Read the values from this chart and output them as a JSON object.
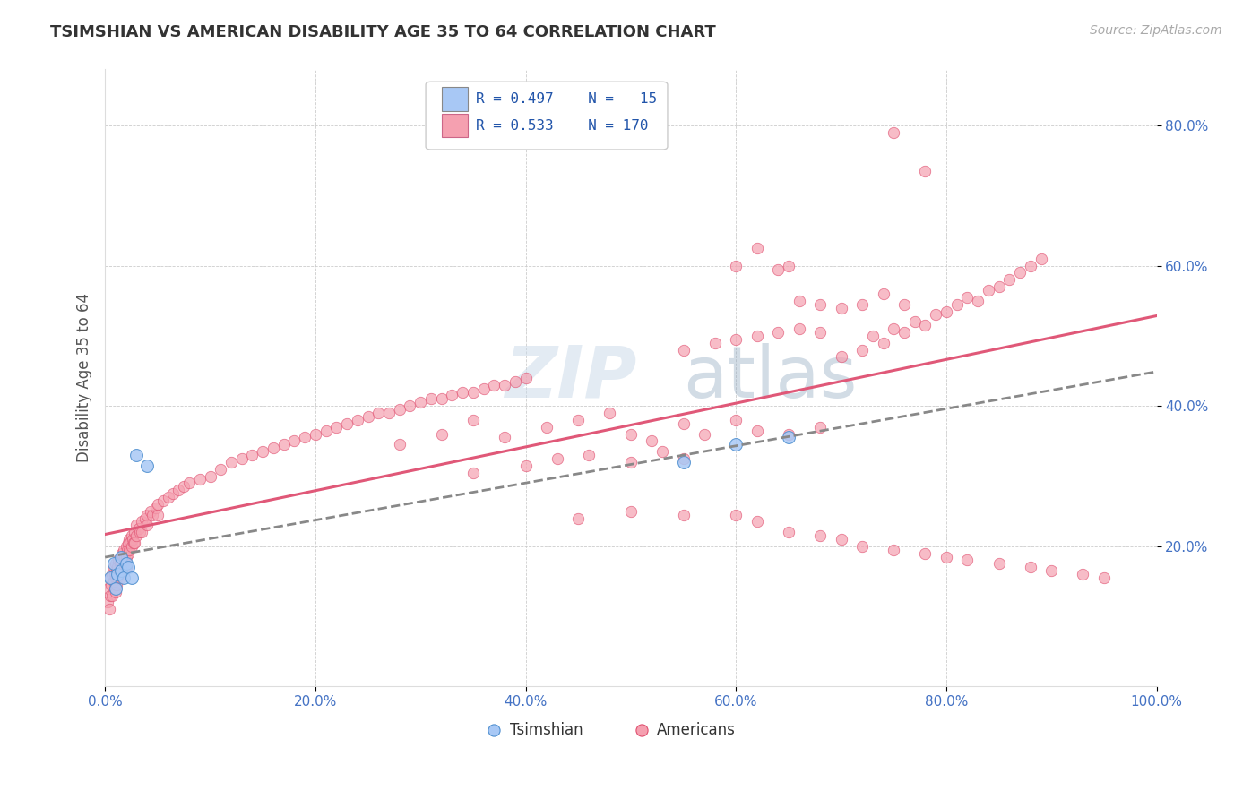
{
  "title": "TSIMSHIAN VS AMERICAN DISABILITY AGE 35 TO 64 CORRELATION CHART",
  "source": "Source: ZipAtlas.com",
  "ylabel": "Disability Age 35 to 64",
  "xlim": [
    0.0,
    1.0
  ],
  "ylim": [
    0.0,
    0.88
  ],
  "x_tick_labels": [
    "0.0%",
    "20.0%",
    "40.0%",
    "60.0%",
    "80.0%",
    "100.0%"
  ],
  "x_tick_vals": [
    0.0,
    0.2,
    0.4,
    0.6,
    0.8,
    1.0
  ],
  "y_tick_labels": [
    "20.0%",
    "40.0%",
    "60.0%",
    "80.0%"
  ],
  "y_tick_vals": [
    0.2,
    0.4,
    0.6,
    0.8
  ],
  "tsimshian_color": "#a8c8f5",
  "american_color": "#f5a0b0",
  "tsimshian_edge_color": "#5090d0",
  "american_edge_color": "#e05070",
  "tsimshian_line_color": "#3060c0",
  "american_line_color": "#e05878",
  "legend_tsimshian_color": "#a8c8f5",
  "legend_american_color": "#f5a0b0",
  "tsimshian_scatter": [
    [
      0.005,
      0.155
    ],
    [
      0.008,
      0.175
    ],
    [
      0.01,
      0.14
    ],
    [
      0.012,
      0.16
    ],
    [
      0.015,
      0.165
    ],
    [
      0.015,
      0.185
    ],
    [
      0.018,
      0.155
    ],
    [
      0.02,
      0.175
    ],
    [
      0.022,
      0.17
    ],
    [
      0.025,
      0.155
    ],
    [
      0.03,
      0.33
    ],
    [
      0.04,
      0.315
    ],
    [
      0.55,
      0.32
    ],
    [
      0.6,
      0.345
    ],
    [
      0.65,
      0.355
    ]
  ],
  "american_scatter": [
    [
      0.002,
      0.12
    ],
    [
      0.003,
      0.14
    ],
    [
      0.004,
      0.11
    ],
    [
      0.005,
      0.13
    ],
    [
      0.005,
      0.155
    ],
    [
      0.006,
      0.145
    ],
    [
      0.007,
      0.16
    ],
    [
      0.007,
      0.13
    ],
    [
      0.008,
      0.15
    ],
    [
      0.008,
      0.17
    ],
    [
      0.009,
      0.14
    ],
    [
      0.009,
      0.16
    ],
    [
      0.01,
      0.155
    ],
    [
      0.01,
      0.175
    ],
    [
      0.01,
      0.135
    ],
    [
      0.011,
      0.165
    ],
    [
      0.011,
      0.145
    ],
    [
      0.012,
      0.17
    ],
    [
      0.012,
      0.155
    ],
    [
      0.013,
      0.18
    ],
    [
      0.013,
      0.16
    ],
    [
      0.014,
      0.175
    ],
    [
      0.014,
      0.165
    ],
    [
      0.015,
      0.185
    ],
    [
      0.015,
      0.17
    ],
    [
      0.015,
      0.155
    ],
    [
      0.016,
      0.19
    ],
    [
      0.016,
      0.175
    ],
    [
      0.017,
      0.185
    ],
    [
      0.017,
      0.17
    ],
    [
      0.018,
      0.195
    ],
    [
      0.018,
      0.18
    ],
    [
      0.019,
      0.185
    ],
    [
      0.02,
      0.2
    ],
    [
      0.02,
      0.185
    ],
    [
      0.02,
      0.17
    ],
    [
      0.021,
      0.195
    ],
    [
      0.022,
      0.205
    ],
    [
      0.022,
      0.19
    ],
    [
      0.023,
      0.21
    ],
    [
      0.023,
      0.195
    ],
    [
      0.024,
      0.205
    ],
    [
      0.025,
      0.215
    ],
    [
      0.025,
      0.2
    ],
    [
      0.026,
      0.21
    ],
    [
      0.027,
      0.205
    ],
    [
      0.028,
      0.22
    ],
    [
      0.028,
      0.205
    ],
    [
      0.03,
      0.215
    ],
    [
      0.03,
      0.23
    ],
    [
      0.032,
      0.225
    ],
    [
      0.033,
      0.22
    ],
    [
      0.035,
      0.235
    ],
    [
      0.035,
      0.22
    ],
    [
      0.038,
      0.24
    ],
    [
      0.04,
      0.245
    ],
    [
      0.04,
      0.23
    ],
    [
      0.043,
      0.25
    ],
    [
      0.045,
      0.245
    ],
    [
      0.048,
      0.255
    ],
    [
      0.05,
      0.26
    ],
    [
      0.05,
      0.245
    ],
    [
      0.055,
      0.265
    ],
    [
      0.06,
      0.27
    ],
    [
      0.065,
      0.275
    ],
    [
      0.07,
      0.28
    ],
    [
      0.075,
      0.285
    ],
    [
      0.08,
      0.29
    ],
    [
      0.09,
      0.295
    ],
    [
      0.1,
      0.3
    ],
    [
      0.11,
      0.31
    ],
    [
      0.12,
      0.32
    ],
    [
      0.13,
      0.325
    ],
    [
      0.14,
      0.33
    ],
    [
      0.15,
      0.335
    ],
    [
      0.16,
      0.34
    ],
    [
      0.17,
      0.345
    ],
    [
      0.18,
      0.35
    ],
    [
      0.19,
      0.355
    ],
    [
      0.2,
      0.36
    ],
    [
      0.21,
      0.365
    ],
    [
      0.22,
      0.37
    ],
    [
      0.23,
      0.375
    ],
    [
      0.24,
      0.38
    ],
    [
      0.25,
      0.385
    ],
    [
      0.26,
      0.39
    ],
    [
      0.27,
      0.39
    ],
    [
      0.28,
      0.395
    ],
    [
      0.29,
      0.4
    ],
    [
      0.3,
      0.405
    ],
    [
      0.31,
      0.41
    ],
    [
      0.32,
      0.41
    ],
    [
      0.33,
      0.415
    ],
    [
      0.34,
      0.42
    ],
    [
      0.35,
      0.42
    ],
    [
      0.36,
      0.425
    ],
    [
      0.37,
      0.43
    ],
    [
      0.38,
      0.43
    ],
    [
      0.39,
      0.435
    ],
    [
      0.4,
      0.44
    ],
    [
      0.28,
      0.345
    ],
    [
      0.32,
      0.36
    ],
    [
      0.35,
      0.38
    ],
    [
      0.38,
      0.355
    ],
    [
      0.42,
      0.37
    ],
    [
      0.45,
      0.38
    ],
    [
      0.48,
      0.39
    ],
    [
      0.5,
      0.36
    ],
    [
      0.52,
      0.35
    ],
    [
      0.55,
      0.375
    ],
    [
      0.57,
      0.36
    ],
    [
      0.6,
      0.38
    ],
    [
      0.62,
      0.365
    ],
    [
      0.65,
      0.36
    ],
    [
      0.68,
      0.37
    ],
    [
      0.7,
      0.47
    ],
    [
      0.72,
      0.48
    ],
    [
      0.73,
      0.5
    ],
    [
      0.74,
      0.49
    ],
    [
      0.75,
      0.51
    ],
    [
      0.76,
      0.505
    ],
    [
      0.77,
      0.52
    ],
    [
      0.78,
      0.515
    ],
    [
      0.79,
      0.53
    ],
    [
      0.8,
      0.535
    ],
    [
      0.81,
      0.545
    ],
    [
      0.82,
      0.555
    ],
    [
      0.83,
      0.55
    ],
    [
      0.84,
      0.565
    ],
    [
      0.85,
      0.57
    ],
    [
      0.86,
      0.58
    ],
    [
      0.87,
      0.59
    ],
    [
      0.88,
      0.6
    ],
    [
      0.89,
      0.61
    ],
    [
      0.6,
      0.6
    ],
    [
      0.62,
      0.625
    ],
    [
      0.64,
      0.595
    ],
    [
      0.65,
      0.6
    ],
    [
      0.66,
      0.55
    ],
    [
      0.68,
      0.545
    ],
    [
      0.7,
      0.54
    ],
    [
      0.72,
      0.545
    ],
    [
      0.74,
      0.56
    ],
    [
      0.76,
      0.545
    ],
    [
      0.55,
      0.48
    ],
    [
      0.58,
      0.49
    ],
    [
      0.6,
      0.495
    ],
    [
      0.62,
      0.5
    ],
    [
      0.64,
      0.505
    ],
    [
      0.66,
      0.51
    ],
    [
      0.68,
      0.505
    ],
    [
      0.35,
      0.305
    ],
    [
      0.4,
      0.315
    ],
    [
      0.43,
      0.325
    ],
    [
      0.46,
      0.33
    ],
    [
      0.5,
      0.32
    ],
    [
      0.53,
      0.335
    ],
    [
      0.55,
      0.325
    ],
    [
      0.6,
      0.245
    ],
    [
      0.62,
      0.235
    ],
    [
      0.65,
      0.22
    ],
    [
      0.68,
      0.215
    ],
    [
      0.7,
      0.21
    ],
    [
      0.72,
      0.2
    ],
    [
      0.75,
      0.195
    ],
    [
      0.78,
      0.19
    ],
    [
      0.8,
      0.185
    ],
    [
      0.82,
      0.18
    ],
    [
      0.85,
      0.175
    ],
    [
      0.88,
      0.17
    ],
    [
      0.9,
      0.165
    ],
    [
      0.93,
      0.16
    ],
    [
      0.95,
      0.155
    ],
    [
      0.45,
      0.24
    ],
    [
      0.5,
      0.25
    ],
    [
      0.55,
      0.245
    ],
    [
      0.75,
      0.79
    ],
    [
      0.78,
      0.735
    ]
  ],
  "watermark_zip": "ZIP",
  "watermark_atlas": "atlas",
  "background_color": "#ffffff",
  "grid_color": "#cccccc",
  "title_color": "#333333",
  "axis_label_color": "#555555",
  "tick_color": "#4472c4"
}
